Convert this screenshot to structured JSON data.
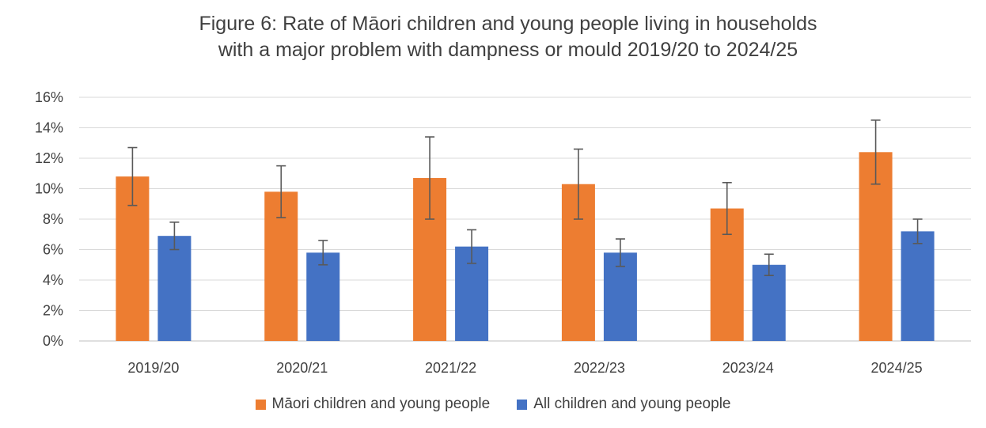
{
  "chart_data": {
    "type": "bar",
    "title_line1": "Figure 6: Rate of Māori children and young people living in households",
    "title_line2": "with a major problem with dampness or mould 2019/20 to 2024/25",
    "categories": [
      "2019/20",
      "2020/21",
      "2021/22",
      "2022/23",
      "2023/24",
      "2024/25"
    ],
    "ylim": [
      0,
      16
    ],
    "yticks": [
      "0%",
      "2%",
      "4%",
      "6%",
      "8%",
      "10%",
      "12%",
      "14%",
      "16%"
    ],
    "grid": true,
    "legend_position": "bottom",
    "series": [
      {
        "name": "Māori children and young people",
        "color": "#ed7d31",
        "values": [
          10.8,
          9.8,
          10.7,
          10.3,
          8.7,
          12.4
        ],
        "error_low": [
          8.9,
          8.1,
          8.0,
          8.0,
          7.0,
          10.3
        ],
        "error_high": [
          12.7,
          11.5,
          13.4,
          12.6,
          10.4,
          14.5
        ]
      },
      {
        "name": "All children and young people",
        "color": "#4472c4",
        "values": [
          6.9,
          5.8,
          6.2,
          5.8,
          5.0,
          7.2
        ],
        "error_low": [
          6.0,
          5.0,
          5.1,
          4.9,
          4.3,
          6.4
        ],
        "error_high": [
          7.8,
          6.6,
          7.3,
          6.7,
          5.7,
          8.0
        ]
      }
    ]
  }
}
